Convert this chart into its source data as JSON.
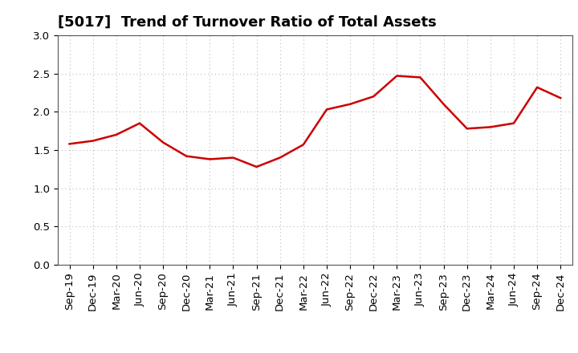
{
  "title": "[5017]  Trend of Turnover Ratio of Total Assets",
  "x_labels": [
    "Sep-19",
    "Dec-19",
    "Mar-20",
    "Jun-20",
    "Sep-20",
    "Dec-20",
    "Mar-21",
    "Jun-21",
    "Sep-21",
    "Dec-21",
    "Mar-22",
    "Jun-22",
    "Sep-22",
    "Dec-22",
    "Mar-23",
    "Jun-23",
    "Sep-23",
    "Dec-23",
    "Mar-24",
    "Jun-24",
    "Sep-24",
    "Dec-24"
  ],
  "y_values": [
    1.58,
    1.62,
    1.7,
    1.85,
    1.6,
    1.42,
    1.38,
    1.4,
    1.28,
    1.4,
    1.57,
    2.03,
    2.1,
    2.2,
    2.47,
    2.45,
    2.1,
    1.78,
    1.8,
    1.85,
    2.32,
    2.18
  ],
  "line_color": "#cc0000",
  "line_width": 1.8,
  "ylim": [
    0.0,
    3.0
  ],
  "yticks": [
    0.0,
    0.5,
    1.0,
    1.5,
    2.0,
    2.5,
    3.0
  ],
  "grid_color": "#bbbbbb",
  "background_color": "#ffffff",
  "title_fontsize": 13,
  "tick_fontsize": 9.5
}
